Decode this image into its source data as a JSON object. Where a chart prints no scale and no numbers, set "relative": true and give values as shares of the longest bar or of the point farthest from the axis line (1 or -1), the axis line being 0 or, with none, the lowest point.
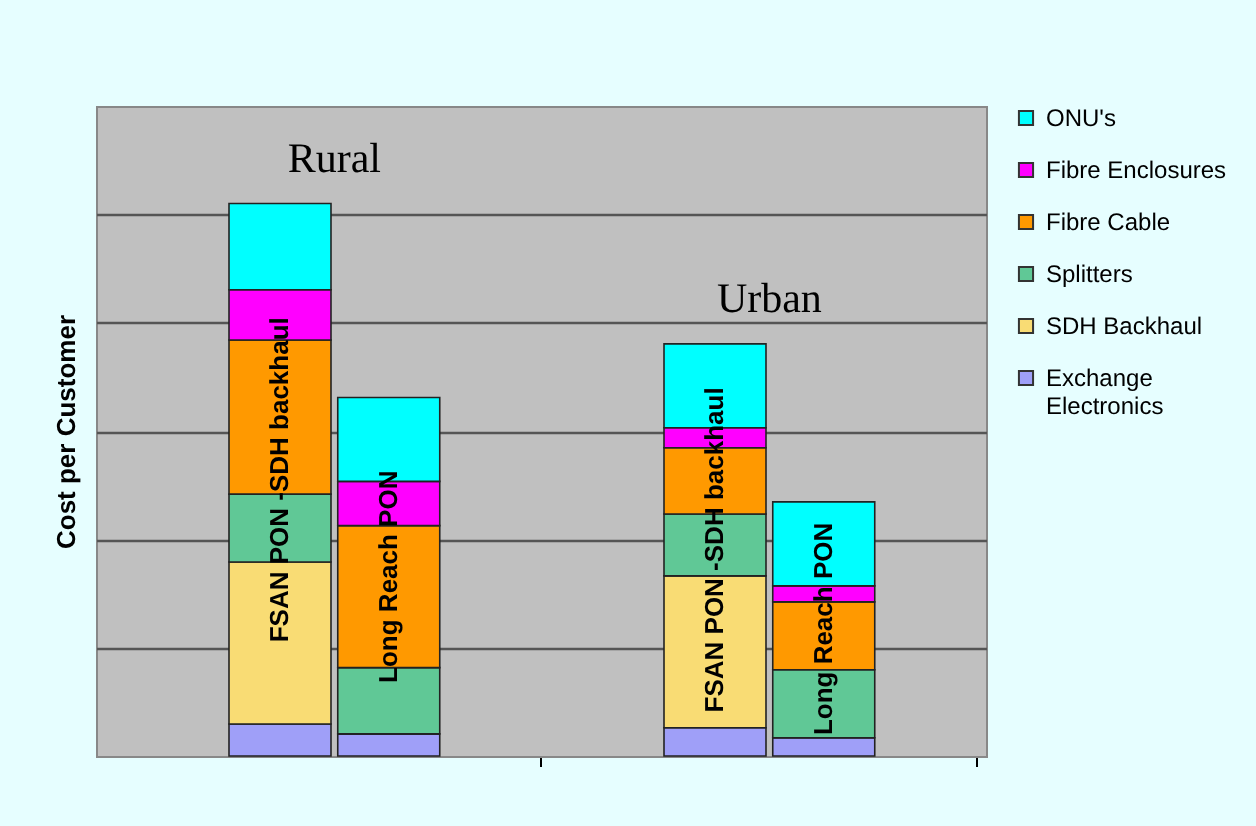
{
  "chart_data": {
    "type": "bar",
    "stacked": true,
    "relative": true,
    "ylabel": "Cost per Customer",
    "categories": [
      "FSAN PON -SDH backhaul",
      "Long Reach PON",
      "FSAN PON -SDH backhaul",
      "Long Reach PON"
    ],
    "annotations": [
      "Rural",
      "Urban"
    ],
    "series": [
      {
        "name": "Exchange Electronics",
        "color": "#9f9ff8",
        "values": [
          0.058,
          0.04,
          0.051,
          0.033
        ]
      },
      {
        "name": "SDH Backhaul",
        "color": "#f9dc74",
        "values": [
          0.293,
          0,
          0.275,
          0
        ]
      },
      {
        "name": "Splitters",
        "color": "#60c896",
        "values": [
          0.123,
          0.12,
          0.112,
          0.123
        ]
      },
      {
        "name": "Fibre Cable",
        "color": "#ff9900",
        "values": [
          0.279,
          0.257,
          0.12,
          0.123
        ]
      },
      {
        "name": "Fibre Enclosures",
        "color": "#ff00ff",
        "values": [
          0.091,
          0.08,
          0.036,
          0.029
        ]
      },
      {
        "name": "ONU's",
        "color": "#00ffff",
        "values": [
          0.156,
          0.152,
          0.152,
          0.152
        ]
      }
    ],
    "grid": "y",
    "legend": "right"
  }
}
